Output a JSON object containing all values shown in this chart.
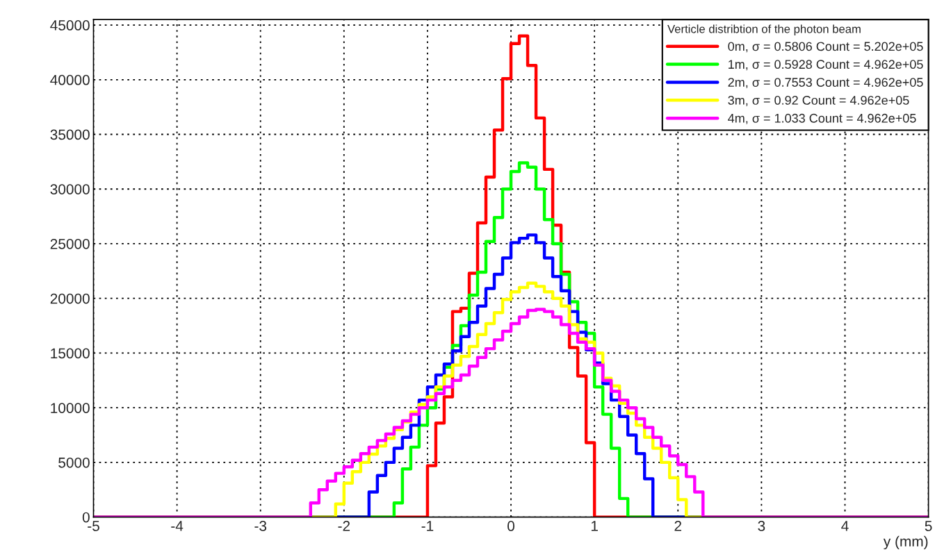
{
  "chart_data": {
    "type": "histogram",
    "xlabel": "y (mm)",
    "legend_title": "Verticle distribtion of the photon beam",
    "bins": [
      -5.0,
      -4.9,
      -4.8,
      -4.7,
      -4.6,
      -4.5,
      -4.4,
      -4.3,
      -4.2,
      -4.1,
      -4.0,
      -3.9,
      -3.8,
      -3.7,
      -3.6,
      -3.5,
      -3.4,
      -3.3,
      -3.2,
      -3.1,
      -3.0,
      -2.9,
      -2.8,
      -2.7,
      -2.6,
      -2.5,
      -2.4,
      -2.3,
      -2.2,
      -2.1,
      -2.0,
      -1.9,
      -1.8,
      -1.7,
      -1.6,
      -1.5,
      -1.4,
      -1.3,
      -1.2,
      -1.1,
      -1.0,
      -0.9,
      -0.8,
      -0.7,
      -0.6,
      -0.5,
      -0.4,
      -0.3,
      -0.2,
      -0.1,
      0.0,
      0.1,
      0.2,
      0.3,
      0.4,
      0.5,
      0.6,
      0.7,
      0.8,
      0.9,
      1.0,
      1.1,
      1.2,
      1.3,
      1.4,
      1.5,
      1.6,
      1.7,
      1.8,
      1.9,
      2.0,
      2.1,
      2.2,
      2.3,
      2.4,
      2.5,
      2.6,
      2.7,
      2.8,
      2.9,
      3.0,
      3.1,
      3.2,
      3.3,
      3.4,
      3.5,
      3.6,
      3.7,
      3.8,
      3.9,
      4.0,
      4.1,
      4.2,
      4.3,
      4.4,
      4.5,
      4.6,
      4.7,
      4.8,
      4.9,
      5.0
    ],
    "series": [
      {
        "name": "0m, σ = 0.5806 Count = 5.202e+05",
        "color": "#ff0000",
        "values": [
          0,
          0,
          0,
          0,
          0,
          0,
          0,
          0,
          0,
          0,
          0,
          0,
          0,
          0,
          0,
          0,
          0,
          0,
          0,
          0,
          0,
          0,
          0,
          0,
          0,
          0,
          0,
          0,
          0,
          0,
          0,
          0,
          0,
          0,
          0,
          0,
          0,
          0,
          0,
          0,
          4700,
          8600,
          11000,
          18800,
          19100,
          22300,
          26900,
          31100,
          35400,
          40100,
          43300,
          44000,
          41300,
          36500,
          31800,
          26700,
          22400,
          15500,
          12900,
          6800,
          0,
          0,
          0,
          0,
          0,
          0,
          0,
          0,
          0,
          0,
          0,
          0,
          0,
          0,
          0,
          0,
          0,
          0,
          0,
          0,
          0,
          0,
          0,
          0,
          0,
          0,
          0,
          0,
          0,
          0,
          0,
          0,
          0,
          0,
          0,
          0,
          0,
          0,
          0,
          0
        ]
      },
      {
        "name": "1m, σ = 0.5928 Count = 4.962e+05",
        "color": "#00ff00",
        "values": [
          0,
          0,
          0,
          0,
          0,
          0,
          0,
          0,
          0,
          0,
          0,
          0,
          0,
          0,
          0,
          0,
          0,
          0,
          0,
          0,
          0,
          0,
          0,
          0,
          0,
          0,
          0,
          0,
          0,
          0,
          0,
          0,
          0,
          0,
          0,
          0,
          1300,
          4400,
          6400,
          8400,
          10000,
          11700,
          13700,
          15700,
          17500,
          20300,
          22400,
          25200,
          27400,
          30000,
          31600,
          32400,
          32000,
          30000,
          27200,
          25000,
          22200,
          19700,
          17800,
          16800,
          11900,
          9400,
          6300,
          1700,
          0,
          0,
          0,
          0,
          0,
          0,
          0,
          0,
          0,
          0,
          0,
          0,
          0,
          0,
          0,
          0,
          0,
          0,
          0,
          0,
          0,
          0,
          0,
          0,
          0,
          0,
          0,
          0,
          0,
          0,
          0,
          0,
          0,
          0,
          0,
          0
        ]
      },
      {
        "name": "2m, σ = 0.7553 Count = 4.962e+05",
        "color": "#0000ff",
        "values": [
          0,
          0,
          0,
          0,
          0,
          0,
          0,
          0,
          0,
          0,
          0,
          0,
          0,
          0,
          0,
          0,
          0,
          0,
          0,
          0,
          0,
          0,
          0,
          0,
          0,
          0,
          0,
          0,
          0,
          0,
          0,
          0,
          0,
          2300,
          3800,
          5000,
          6300,
          7300,
          8400,
          10700,
          11900,
          13000,
          14000,
          15200,
          16500,
          17800,
          19300,
          20900,
          22200,
          23700,
          25100,
          25500,
          25800,
          25100,
          23700,
          22000,
          20700,
          18800,
          16900,
          15300,
          14100,
          12200,
          10700,
          9200,
          7500,
          5800,
          3500,
          0,
          0,
          0,
          0,
          0,
          0,
          0,
          0,
          0,
          0,
          0,
          0,
          0,
          0,
          0,
          0,
          0,
          0,
          0,
          0,
          0,
          0,
          0,
          0,
          0,
          0,
          0,
          0,
          0,
          0,
          0,
          0,
          0
        ]
      },
      {
        "name": "3m, σ = 0.92 Count = 4.962e+05",
        "color": "#ffff00",
        "values": [
          0,
          0,
          0,
          0,
          0,
          0,
          0,
          0,
          0,
          0,
          0,
          0,
          0,
          0,
          0,
          0,
          0,
          0,
          0,
          0,
          0,
          0,
          0,
          0,
          0,
          0,
          0,
          0,
          0,
          1200,
          3100,
          4150,
          5000,
          5750,
          6500,
          7200,
          8000,
          8700,
          9600,
          10300,
          11000,
          11900,
          12900,
          13900,
          14700,
          15600,
          16700,
          17700,
          18700,
          19900,
          20600,
          21000,
          21400,
          21100,
          20600,
          20000,
          19300,
          17600,
          16300,
          16000,
          15000,
          12700,
          12000,
          10400,
          9500,
          8400,
          7300,
          6300,
          5000,
          3600,
          1600,
          0,
          0,
          0,
          0,
          0,
          0,
          0,
          0,
          0,
          0,
          0,
          0,
          0,
          0,
          0,
          0,
          0,
          0,
          0,
          0,
          0,
          0,
          0,
          0,
          0,
          0,
          0,
          0,
          0
        ]
      },
      {
        "name": "4m, σ = 1.033 Count = 4.962e+05",
        "color": "#ff00ff",
        "values": [
          0,
          0,
          0,
          0,
          0,
          0,
          0,
          0,
          0,
          0,
          0,
          0,
          0,
          0,
          0,
          0,
          0,
          0,
          0,
          0,
          0,
          0,
          0,
          0,
          0,
          0,
          1300,
          2500,
          3300,
          4000,
          4600,
          5200,
          5800,
          6400,
          7000,
          7600,
          8200,
          8800,
          9400,
          10000,
          10700,
          11300,
          11900,
          12500,
          13000,
          13800,
          14600,
          15400,
          16200,
          17000,
          17700,
          18300,
          18900,
          19000,
          18800,
          18300,
          17600,
          16800,
          16000,
          15400,
          13900,
          12500,
          11500,
          10700,
          10000,
          9000,
          8200,
          7300,
          6500,
          5600,
          4800,
          3700,
          2300,
          0,
          0,
          0,
          0,
          0,
          0,
          0,
          0,
          0,
          0,
          0,
          0,
          0,
          0,
          0,
          0,
          0,
          0,
          0,
          0,
          0,
          0,
          0,
          0,
          0,
          0,
          0
        ]
      }
    ],
    "xlim": [
      -5,
      5
    ],
    "ylim": [
      0,
      45500
    ],
    "xticks": [
      -5,
      -4,
      -3,
      -2,
      -1,
      0,
      1,
      2,
      3,
      4,
      5
    ],
    "yticks": [
      0,
      5000,
      10000,
      15000,
      20000,
      25000,
      30000,
      35000,
      40000,
      45000
    ],
    "grid": true,
    "legend": "top right",
    "line_style": "solid"
  }
}
